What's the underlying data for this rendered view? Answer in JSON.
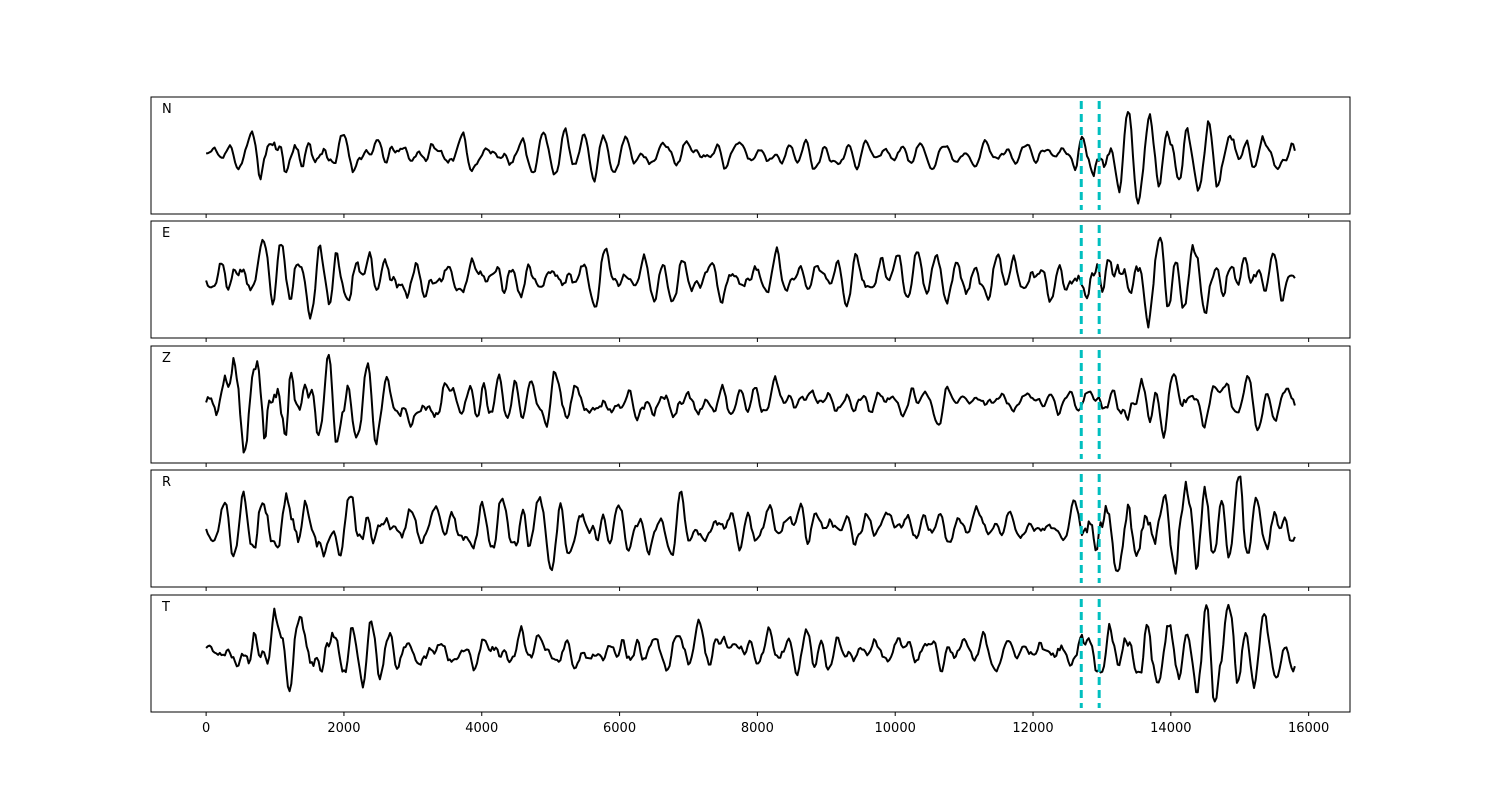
{
  "chart_data": [
    {
      "type": "line",
      "panel_label": "N",
      "xlim": [
        -800,
        16600
      ],
      "x_start": 0,
      "x_end": 15800,
      "samples": 640,
      "seed": 11,
      "amplitude_profile": [
        [
          0,
          0.35
        ],
        [
          450,
          0.55
        ],
        [
          900,
          1.0
        ],
        [
          1500,
          0.85
        ],
        [
          2600,
          0.5
        ],
        [
          4800,
          0.55
        ],
        [
          7000,
          0.45
        ],
        [
          9000,
          0.38
        ],
        [
          12500,
          0.3
        ],
        [
          12700,
          1.0
        ],
        [
          13200,
          0.9
        ],
        [
          14700,
          1.0
        ],
        [
          15800,
          0.55
        ]
      ],
      "markers": [
        12700,
        12960
      ]
    },
    {
      "type": "line",
      "panel_label": "E",
      "xlim": [
        -800,
        16600
      ],
      "x_start": 0,
      "x_end": 15800,
      "samples": 640,
      "seed": 23,
      "amplitude_profile": [
        [
          0,
          0.35
        ],
        [
          500,
          0.75
        ],
        [
          1000,
          0.8
        ],
        [
          2000,
          0.8
        ],
        [
          4000,
          0.55
        ],
        [
          7000,
          0.6
        ],
        [
          9000,
          0.55
        ],
        [
          12000,
          0.55
        ],
        [
          12700,
          0.8
        ],
        [
          13700,
          1.0
        ],
        [
          15000,
          0.85
        ],
        [
          15800,
          0.3
        ]
      ],
      "markers": [
        12700,
        12960
      ]
    },
    {
      "type": "line",
      "panel_label": "Z",
      "xlim": [
        -800,
        16600
      ],
      "x_start": 0,
      "x_end": 15800,
      "samples": 640,
      "seed": 37,
      "amplitude_profile": [
        [
          0,
          0.25
        ],
        [
          450,
          1.0
        ],
        [
          950,
          1.0
        ],
        [
          1500,
          0.7
        ],
        [
          2500,
          0.45
        ],
        [
          5000,
          0.35
        ],
        [
          8000,
          0.3
        ],
        [
          12000,
          0.2
        ],
        [
          12800,
          0.25
        ],
        [
          13500,
          0.45
        ],
        [
          15800,
          0.3
        ]
      ],
      "markers": [
        12700,
        12960
      ]
    },
    {
      "type": "line",
      "panel_label": "R",
      "xlim": [
        -800,
        16600
      ],
      "x_start": 0,
      "x_end": 15800,
      "samples": 640,
      "seed": 51,
      "amplitude_profile": [
        [
          0,
          0.25
        ],
        [
          500,
          0.5
        ],
        [
          950,
          0.95
        ],
        [
          1500,
          0.7
        ],
        [
          3000,
          0.45
        ],
        [
          4600,
          0.6
        ],
        [
          7000,
          0.4
        ],
        [
          9000,
          0.4
        ],
        [
          12500,
          0.25
        ],
        [
          12720,
          1.0
        ],
        [
          13000,
          0.9
        ],
        [
          14600,
          0.85
        ],
        [
          15800,
          0.4
        ]
      ],
      "markers": [
        12700,
        12960
      ]
    },
    {
      "type": "line",
      "panel_label": "T",
      "xlim": [
        -800,
        16600
      ],
      "x_start": 0,
      "x_end": 15800,
      "samples": 640,
      "seed": 67,
      "amplitude_profile": [
        [
          0,
          0.3
        ],
        [
          500,
          0.7
        ],
        [
          1000,
          0.85
        ],
        [
          1700,
          0.75
        ],
        [
          3000,
          0.45
        ],
        [
          6000,
          0.55
        ],
        [
          8500,
          0.45
        ],
        [
          12000,
          0.35
        ],
        [
          12700,
          0.75
        ],
        [
          13600,
          1.0
        ],
        [
          14700,
          1.0
        ],
        [
          15800,
          0.35
        ]
      ],
      "markers": [
        12700,
        12960
      ]
    }
  ],
  "xaxis": {
    "ticks": [
      0,
      2000,
      4000,
      6000,
      8000,
      10000,
      12000,
      14000,
      16000
    ],
    "tick_labels": [
      "0",
      "2000",
      "4000",
      "6000",
      "8000",
      "10000",
      "12000",
      "14000",
      "16000"
    ]
  },
  "colors": {
    "trace": "#000000",
    "marker": "#00bfbf"
  }
}
